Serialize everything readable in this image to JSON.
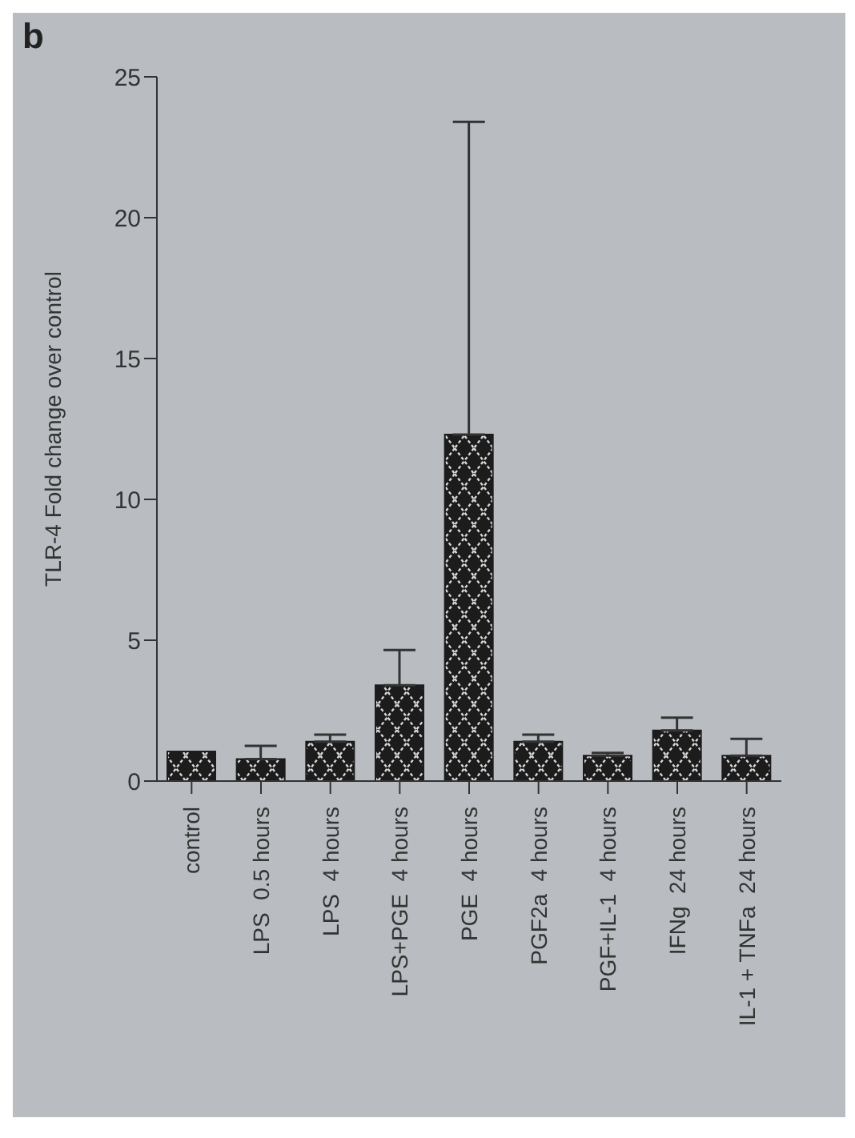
{
  "chart_data": {
    "type": "bar",
    "title": "b",
    "ylabel": "TLR-4 Fold change over control",
    "categories": [
      "control",
      "LPS  0.5 hours",
      "LPS  4 hours",
      "LPS+PGE  4 hours",
      "PGE  4 hours",
      "PGF2a  4 hours",
      "PGF+IL-1  4 hours",
      "IFNg  24 hours",
      "IL-1 + TNFa  24 hours"
    ],
    "values": [
      1.05,
      0.78,
      1.4,
      3.4,
      12.3,
      1.4,
      0.9,
      1.8,
      0.9
    ],
    "errors": [
      null,
      [
        0.78,
        1.25
      ],
      [
        1.4,
        1.65
      ],
      [
        3.4,
        4.65
      ],
      [
        12.3,
        23.4
      ],
      [
        1.4,
        1.65
      ],
      [
        0.9,
        1.0
      ],
      [
        1.8,
        2.25
      ],
      [
        0.9,
        1.5
      ]
    ],
    "color": "#1c1c1c",
    "ylim": [
      0,
      25
    ],
    "yticks": [
      0,
      5,
      10,
      15,
      20,
      25
    ]
  }
}
